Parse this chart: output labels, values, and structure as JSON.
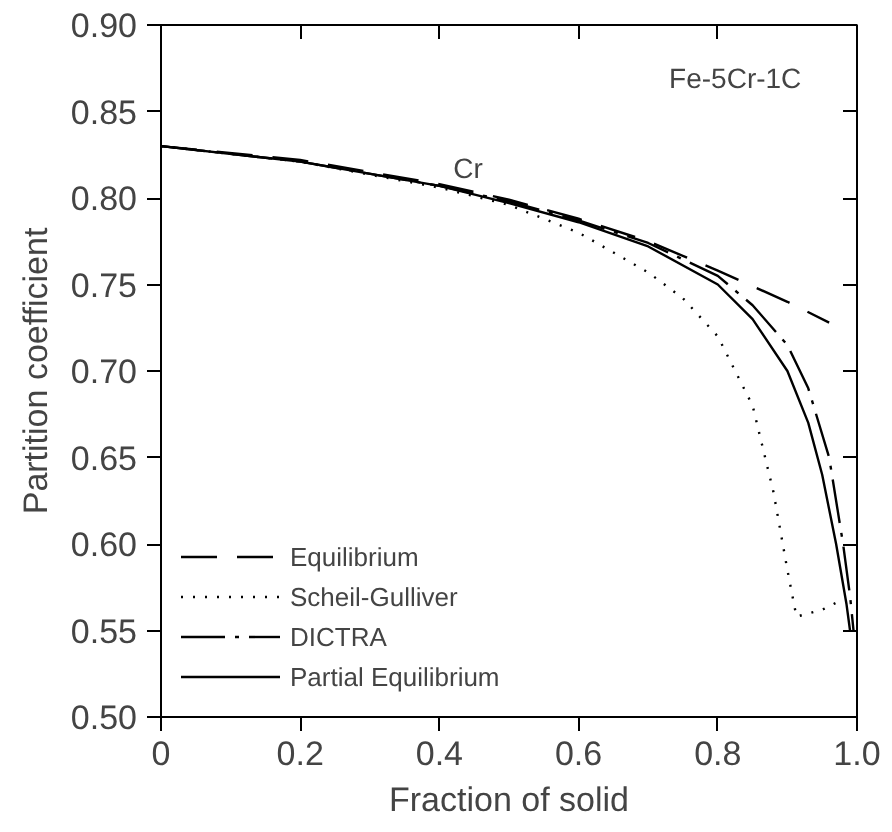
{
  "chart_data": {
    "type": "line",
    "xlabel": "Fraction of solid",
    "ylabel": "Partition coefficient",
    "xlim": [
      0,
      1.0
    ],
    "ylim": [
      0.5,
      0.9
    ],
    "xticks": [
      0,
      0.2,
      0.4,
      0.6,
      0.8,
      {
        "value": 1.0,
        "label": "1.0"
      }
    ],
    "yticks": [
      {
        "value": 0.5,
        "label": "0.50"
      },
      0.55,
      {
        "value": 0.6,
        "label": "0.60"
      },
      0.65,
      {
        "value": 0.7,
        "label": "0.70"
      },
      0.75,
      {
        "value": 0.8,
        "label": "0.80"
      },
      0.85,
      {
        "value": 0.9,
        "label": "0.90"
      }
    ],
    "grid": false,
    "legend": "bottom left",
    "annotations": [
      "Fe-5Cr-1C",
      "Cr"
    ],
    "series": [
      {
        "name": "Equilibrium",
        "color": "#000000",
        "line_style": "dashed",
        "x": [
          0,
          0.2,
          0.4,
          0.5,
          0.6,
          0.7,
          0.8,
          0.9,
          0.96
        ],
        "values": [
          0.83,
          0.822,
          0.808,
          0.799,
          0.788,
          0.775,
          0.758,
          0.74,
          0.728
        ]
      },
      {
        "name": "Scheil-Gulliver",
        "color": "#000000",
        "line_style": "dotted",
        "x": [
          0,
          0.2,
          0.4,
          0.5,
          0.6,
          0.7,
          0.75,
          0.8,
          0.85,
          0.88,
          0.9,
          0.913,
          0.95,
          0.98
        ],
        "values": [
          0.83,
          0.821,
          0.806,
          0.796,
          0.78,
          0.757,
          0.742,
          0.72,
          0.68,
          0.63,
          0.585,
          0.558,
          0.562,
          0.568
        ]
      },
      {
        "name": "DICTRA",
        "color": "#000000",
        "line_style": "dashdot",
        "x": [
          0,
          0.2,
          0.4,
          0.5,
          0.6,
          0.7,
          0.8,
          0.85,
          0.9,
          0.93,
          0.96,
          0.98,
          0.99,
          0.995
        ],
        "values": [
          0.83,
          0.821,
          0.807,
          0.798,
          0.787,
          0.774,
          0.755,
          0.738,
          0.715,
          0.69,
          0.65,
          0.6,
          0.57,
          0.55
        ]
      },
      {
        "name": "Partial Equilibrium",
        "color": "#000000",
        "line_style": "solid",
        "x": [
          0,
          0.2,
          0.4,
          0.5,
          0.6,
          0.7,
          0.8,
          0.85,
          0.9,
          0.93,
          0.95,
          0.97,
          0.985,
          0.99
        ],
        "values": [
          0.83,
          0.821,
          0.807,
          0.797,
          0.786,
          0.772,
          0.75,
          0.73,
          0.7,
          0.67,
          0.64,
          0.6,
          0.565,
          0.55
        ]
      }
    ]
  }
}
